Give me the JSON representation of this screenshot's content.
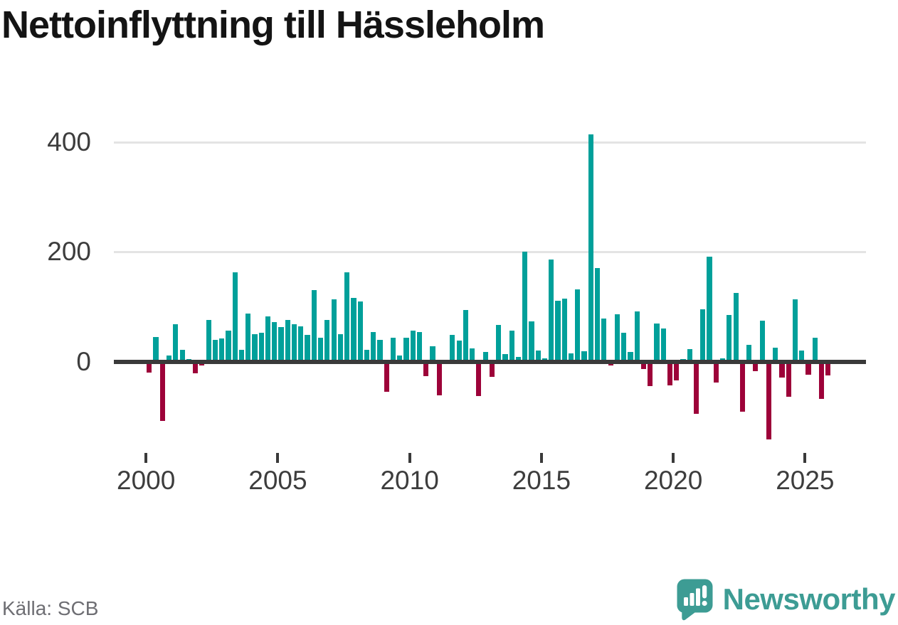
{
  "title": "Nettoinflyttning till Hässleholm",
  "source": {
    "label": "Källa: SCB"
  },
  "branding": {
    "name": "Newsworthy",
    "icon": "bar-chart-speech-bubble-icon"
  },
  "colors": {
    "positive": "#00a09a",
    "negative": "#9d0239",
    "gridline": "#e4e4e4",
    "zero_line": "#3a3a3a",
    "axis_text": "#3d3d3d",
    "title_text": "#141414",
    "source_text": "#6e6e73",
    "brand_teal": "#3d9c94"
  },
  "chart_data": {
    "type": "bar",
    "title": "Nettoinflyttning till Hässleholm",
    "frequency": "quarterly",
    "legend": "none",
    "grid": "horizontal",
    "xlabel": "",
    "ylabel": "",
    "yticks": [
      0,
      200,
      400
    ],
    "xticks": [
      2000,
      2005,
      2010,
      2015,
      2020,
      2025
    ],
    "ylim": [
      -160,
      430
    ],
    "categories": [
      "2000 Q1",
      "2000 Q2",
      "2000 Q3",
      "2000 Q4",
      "2001 Q1",
      "2001 Q2",
      "2001 Q3",
      "2001 Q4",
      "2002 Q1",
      "2002 Q2",
      "2002 Q3",
      "2002 Q4",
      "2003 Q1",
      "2003 Q2",
      "2003 Q3",
      "2003 Q4",
      "2004 Q1",
      "2004 Q2",
      "2004 Q3",
      "2004 Q4",
      "2005 Q1",
      "2005 Q2",
      "2005 Q3",
      "2005 Q4",
      "2006 Q1",
      "2006 Q2",
      "2006 Q3",
      "2006 Q4",
      "2007 Q1",
      "2007 Q2",
      "2007 Q3",
      "2007 Q4",
      "2008 Q1",
      "2008 Q2",
      "2008 Q3",
      "2008 Q4",
      "2009 Q1",
      "2009 Q2",
      "2009 Q3",
      "2009 Q4",
      "2010 Q1",
      "2010 Q2",
      "2010 Q3",
      "2010 Q4",
      "2011 Q1",
      "2011 Q2",
      "2011 Q3",
      "2011 Q4",
      "2012 Q1",
      "2012 Q2",
      "2012 Q3",
      "2012 Q4",
      "2013 Q1",
      "2013 Q2",
      "2013 Q3",
      "2013 Q4",
      "2014 Q1",
      "2014 Q2",
      "2014 Q3",
      "2014 Q4",
      "2015 Q1",
      "2015 Q2",
      "2015 Q3",
      "2015 Q4",
      "2016 Q1",
      "2016 Q2",
      "2016 Q3",
      "2016 Q4",
      "2017 Q1",
      "2017 Q2",
      "2017 Q3",
      "2017 Q4",
      "2018 Q1",
      "2018 Q2",
      "2018 Q3",
      "2018 Q4",
      "2019 Q1",
      "2019 Q2",
      "2019 Q3",
      "2019 Q4",
      "2020 Q1",
      "2020 Q2",
      "2020 Q3",
      "2020 Q4",
      "2021 Q1",
      "2021 Q2",
      "2021 Q3",
      "2021 Q4",
      "2022 Q1",
      "2022 Q2",
      "2022 Q3",
      "2022 Q4",
      "2023 Q1",
      "2023 Q2",
      "2023 Q3",
      "2023 Q4",
      "2024 Q1",
      "2024 Q2",
      "2024 Q3",
      "2024 Q4",
      "2025 Q1",
      "2025 Q2",
      "2025 Q3",
      "2025 Q4"
    ],
    "values": [
      -20,
      45,
      -108,
      11,
      68,
      21,
      4,
      -22,
      -7,
      76,
      39,
      42,
      56,
      163,
      21,
      87,
      50,
      52,
      82,
      72,
      63,
      76,
      68,
      64,
      48,
      130,
      43,
      76,
      114,
      50,
      163,
      116,
      109,
      22,
      54,
      39,
      -55,
      44,
      11,
      43,
      57,
      54,
      -26,
      28,
      -61,
      0,
      49,
      38,
      94,
      24,
      -63,
      17,
      -28,
      67,
      14,
      57,
      9,
      200,
      73,
      20,
      6,
      186,
      111,
      115,
      15,
      132,
      19,
      415,
      170,
      79,
      -7,
      86,
      53,
      18,
      91,
      -13,
      -45,
      69,
      60,
      -44,
      -35,
      5,
      23,
      -95,
      95,
      191,
      -38,
      6,
      85,
      125,
      -92,
      30,
      -17,
      74,
      -142,
      25,
      -29,
      -64,
      114,
      20,
      -24,
      44,
      -68,
      -25
    ]
  }
}
